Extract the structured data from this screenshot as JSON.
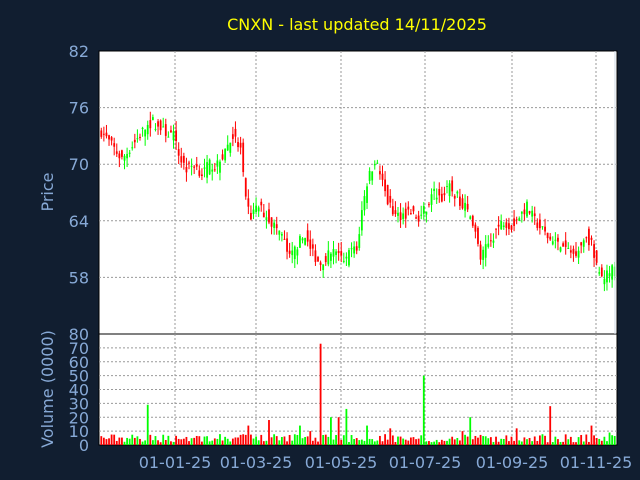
{
  "chart_data": {
    "type": "candlestick",
    "title": "CNXN - last updated 14/11/2025",
    "x_tick_labels": [
      "01-01-25",
      "01-03-25",
      "01-05-25",
      "01-07-25",
      "01-09-25",
      "01-11-25"
    ],
    "price_panel": {
      "ylabel": "Price",
      "ylim": [
        52,
        82
      ],
      "yticks": [
        58,
        64,
        70,
        76,
        82
      ]
    },
    "volume_panel": {
      "ylabel": "Volume (0000)",
      "ylim": [
        0,
        80
      ],
      "yticks": [
        0,
        10,
        20,
        30,
        40,
        50,
        60,
        70,
        80
      ],
      "tick_labels": [
        "0",
        "10",
        "20",
        "30",
        "40",
        "50",
        "60",
        "70",
        "80"
      ]
    },
    "grid": true,
    "colors": {
      "background": "#111e30",
      "plot_background": "#ffffff",
      "up": "#00ff00",
      "down": "#ff0000",
      "title": "#ffff00",
      "axis_text": "#87a9d6"
    },
    "price_anchors": [
      [
        0,
        73.5
      ],
      [
        4,
        72.0
      ],
      [
        8,
        70.5
      ],
      [
        12,
        72.0
      ],
      [
        16,
        73.5
      ],
      [
        20,
        74.5
      ],
      [
        24,
        73.5
      ],
      [
        28,
        73.0
      ],
      [
        30,
        71.0
      ],
      [
        33,
        69.5
      ],
      [
        36,
        70.0
      ],
      [
        39,
        69.0
      ],
      [
        42,
        70.0
      ],
      [
        45,
        69.8
      ],
      [
        48,
        71.5
      ],
      [
        51,
        73.0
      ],
      [
        54,
        71.5
      ],
      [
        56,
        66.0
      ],
      [
        58,
        64.5
      ],
      [
        61,
        65.5
      ],
      [
        64,
        64.5
      ],
      [
        67,
        63.5
      ],
      [
        70,
        62.5
      ],
      [
        73,
        60.0
      ],
      [
        76,
        61.5
      ],
      [
        79,
        62.5
      ],
      [
        82,
        60.5
      ],
      [
        85,
        59.5
      ],
      [
        88,
        60.5
      ],
      [
        91,
        60.8
      ],
      [
        94,
        59.5
      ],
      [
        97,
        61.0
      ],
      [
        99,
        60.8
      ],
      [
        101,
        65.0
      ],
      [
        103,
        68.0
      ],
      [
        106,
        70.5
      ],
      [
        108,
        69.0
      ],
      [
        111,
        66.0
      ],
      [
        114,
        64.5
      ],
      [
        117,
        64.7
      ],
      [
        120,
        65.0
      ],
      [
        123,
        64.0
      ],
      [
        126,
        65.5
      ],
      [
        129,
        67.0
      ],
      [
        132,
        66.5
      ],
      [
        135,
        67.5
      ],
      [
        138,
        66.5
      ],
      [
        141,
        65.5
      ],
      [
        144,
        64.0
      ],
      [
        147,
        60.0
      ],
      [
        150,
        61.5
      ],
      [
        153,
        63.0
      ],
      [
        156,
        64.0
      ],
      [
        159,
        63.5
      ],
      [
        162,
        64.5
      ],
      [
        165,
        65.5
      ],
      [
        168,
        64.0
      ],
      [
        171,
        63.0
      ],
      [
        174,
        62.0
      ],
      [
        177,
        61.5
      ],
      [
        180,
        61.0
      ],
      [
        183,
        60.5
      ],
      [
        186,
        61.5
      ],
      [
        188,
        62.5
      ],
      [
        190,
        61.5
      ],
      [
        192,
        59.0
      ],
      [
        194,
        58.0
      ],
      [
        197,
        58.5
      ],
      [
        199,
        59.0
      ]
    ],
    "volume_peaks": {
      "18": 29,
      "57": 14,
      "65": 18,
      "77": 14,
      "81": 10,
      "85": 73,
      "89": 20,
      "92": 20,
      "95": 26,
      "103": 14,
      "112": 12,
      "125": 50,
      "140": 10,
      "143": 20,
      "161": 12,
      "174": 28,
      "190": 14,
      "197": 9
    }
  }
}
